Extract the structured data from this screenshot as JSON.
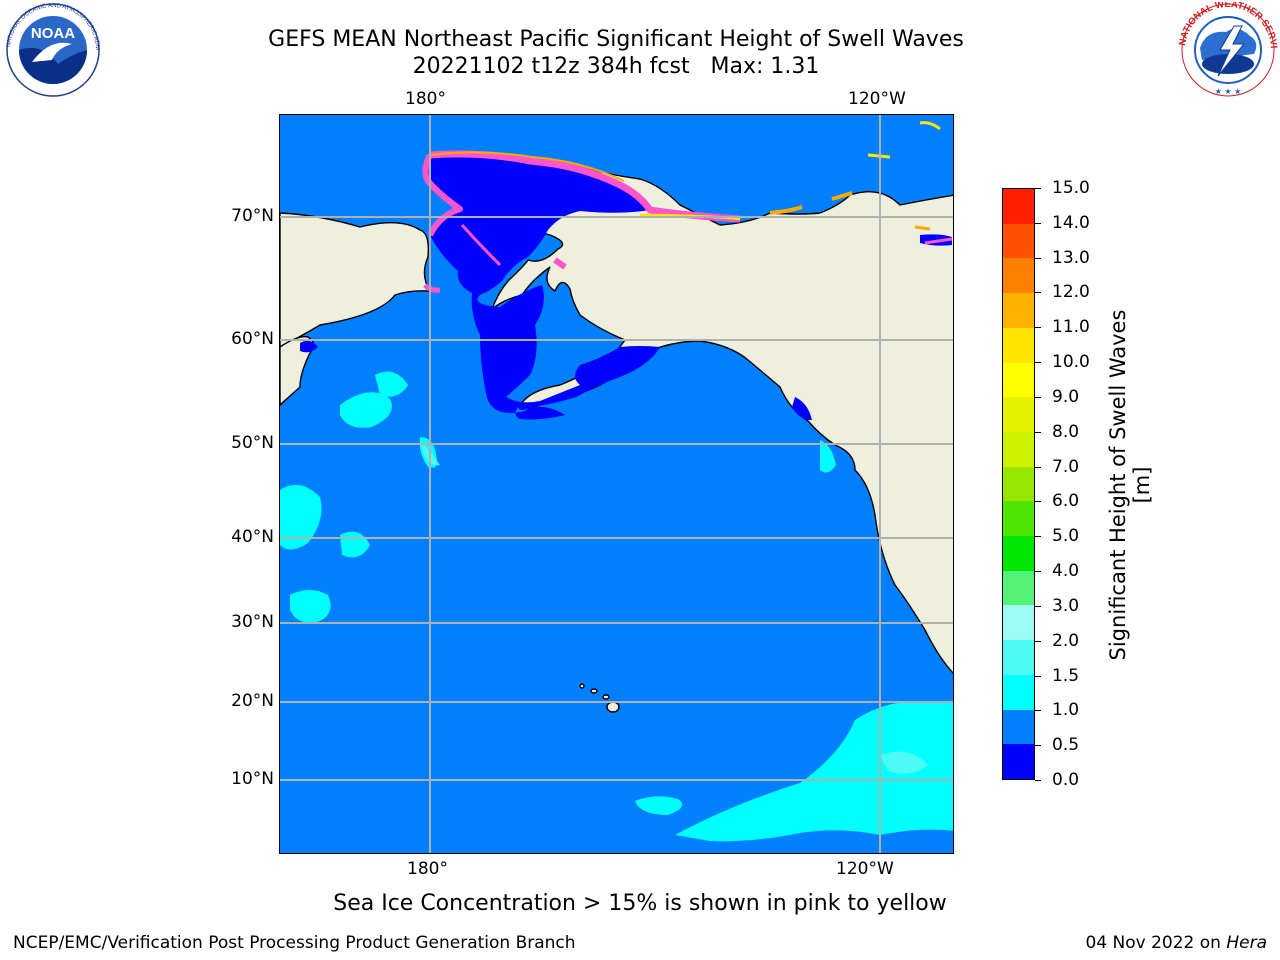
{
  "title": {
    "line1": "GEFS MEAN Northeast Pacific Significant Height of Swell Waves",
    "line2": "20221102 t12z 384h fcst   Max: 1.31"
  },
  "logos": {
    "left": {
      "icon": "noaa-logo",
      "text": "NOAA",
      "ring_text": "NATIONAL OCEANIC AND ATMOSPHERIC ADMINISTRATION · U.S. DEPARTMENT OF COMMERCE"
    },
    "right": {
      "icon": "national-weather-service-logo",
      "ring_text": "NATIONAL WEATHER SERVICE"
    }
  },
  "map": {
    "lon_labels_top": [
      "180°",
      "120°W"
    ],
    "lon_labels_bottom": [
      "180°",
      "120°W"
    ],
    "lat_labels": [
      "70°N",
      "60°N",
      "50°N",
      "40°N",
      "30°N",
      "20°N",
      "10°N"
    ],
    "colors": {
      "land": "#efefde",
      "ocean_low": "#0080ff",
      "ocean_min": "#0000ff",
      "swell_mid": "#00ffff",
      "swell_light": "#4dfbf5",
      "ice_pink": "#ff55cc",
      "ice_orange": "#ffaa00",
      "ice_yellow": "#ffe600",
      "gridline": "#b0b0b0"
    }
  },
  "colorbar": {
    "label": "Significant Height of Swell Waves [m]",
    "ticks": [
      "0.0",
      "0.5",
      "1.0",
      "1.5",
      "2.0",
      "3.0",
      "4.0",
      "5.0",
      "6.0",
      "7.0",
      "8.0",
      "9.0",
      "10.0",
      "11.0",
      "12.0",
      "13.0",
      "14.0",
      "15.0"
    ],
    "colors": [
      "#0000ff",
      "#0080ff",
      "#00ffff",
      "#4dfbf5",
      "#9efcf7",
      "#52f277",
      "#00e600",
      "#4ce600",
      "#99e600",
      "#ccf200",
      "#e6f200",
      "#ffff00",
      "#ffe600",
      "#ffb300",
      "#ff8000",
      "#ff5000",
      "#ff2000"
    ]
  },
  "caption": "Sea Ice Concentration > 15% is shown in pink to yellow",
  "footer": {
    "left": "NCEP/EMC/Verification Post Processing Product Generation Branch",
    "date": "04 Nov 2022 on ",
    "machine": "Hera"
  }
}
